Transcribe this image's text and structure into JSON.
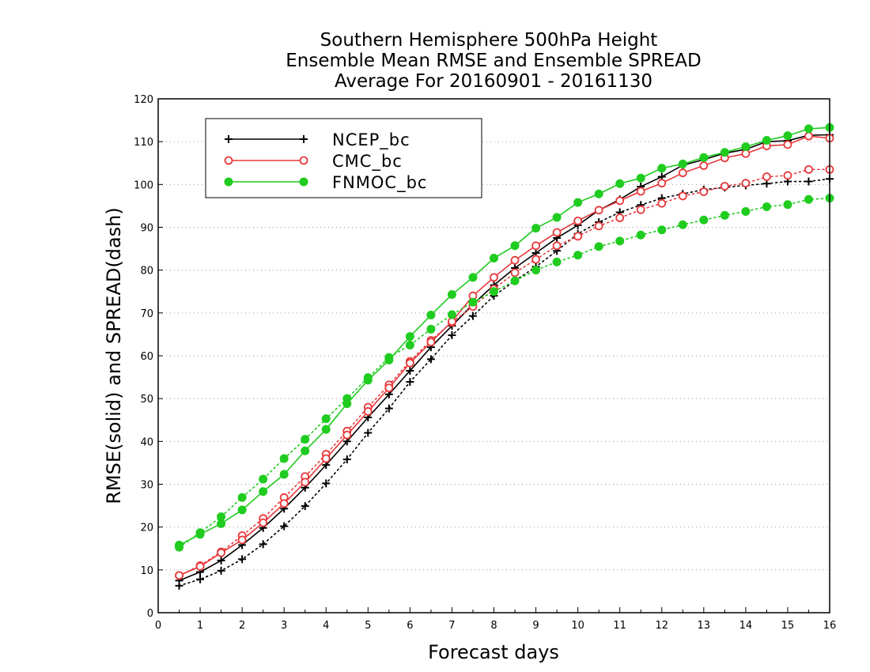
{
  "chart_data": {
    "type": "line",
    "title": [
      "Southern Hemisphere 500hPa Height",
      "Ensemble Mean RMSE and Ensemble SPREAD",
      "Average For 20160901 - 20161130"
    ],
    "xlabel": "Forecast days",
    "ylabel": "RMSE(solid) and SPREAD(dash)",
    "xlim": [
      0,
      16
    ],
    "ylim": [
      0,
      120
    ],
    "xticks": [
      0,
      1,
      2,
      3,
      4,
      5,
      6,
      7,
      8,
      9,
      10,
      11,
      12,
      13,
      14,
      15,
      16
    ],
    "yticks": [
      0,
      10,
      20,
      30,
      40,
      50,
      60,
      70,
      80,
      90,
      100,
      110,
      120
    ],
    "grid": true,
    "legend_position": "top-left",
    "x": [
      0.5,
      1,
      1.5,
      2,
      2.5,
      3,
      3.5,
      4,
      4.5,
      5,
      5.5,
      6,
      6.5,
      7,
      7.5,
      8,
      8.5,
      9,
      9.5,
      10,
      10.5,
      11,
      11.5,
      12,
      12.5,
      13,
      13.5,
      14,
      14.5,
      15,
      15.5,
      16
    ],
    "series": [
      {
        "name": "NCEP_bc",
        "color": "#000000",
        "marker": "plus",
        "rmse": [
          7.5,
          9.5,
          12.2,
          15.8,
          19.8,
          24.3,
          29.2,
          34.5,
          40.0,
          45.6,
          51.0,
          56.5,
          62.0,
          67.0,
          72.0,
          76.5,
          80.5,
          84.0,
          87.5,
          90.5,
          94.0,
          96.5,
          99.5,
          101.8,
          104.5,
          105.8,
          107.3,
          108.2,
          110.0,
          110.2,
          111.5,
          111.6
        ],
        "spread": [
          6.3,
          7.8,
          9.8,
          12.5,
          16.0,
          20.2,
          24.9,
          30.2,
          35.8,
          42.0,
          47.7,
          53.9,
          59.2,
          64.8,
          69.3,
          74.0,
          77.5,
          80.8,
          84.5,
          88.5,
          91.2,
          93.5,
          95.2,
          96.8,
          97.8,
          98.8,
          99.3,
          99.8,
          100.2,
          100.7,
          100.7,
          101.3
        ]
      },
      {
        "name": "CMC_bc",
        "color": "#e8393c",
        "marker": "open-circle",
        "rmse": [
          8.7,
          10.8,
          14.0,
          17.0,
          21.0,
          25.5,
          30.5,
          36.0,
          41.5,
          47.0,
          52.5,
          58.3,
          63.2,
          68.0,
          74.0,
          78.3,
          82.3,
          85.7,
          88.8,
          91.5,
          94.0,
          96.2,
          98.4,
          100.3,
          102.7,
          104.4,
          106.2,
          107.2,
          109.0,
          109.3,
          111.3,
          110.8
        ],
        "spread": [
          8.7,
          11.0,
          14.2,
          18.0,
          22.0,
          26.9,
          31.8,
          37.0,
          42.4,
          48.0,
          53.2,
          58.7,
          63.6,
          67.8,
          71.5,
          75.6,
          79.4,
          82.5,
          85.7,
          87.9,
          90.3,
          92.2,
          94.1,
          95.6,
          97.3,
          98.3,
          99.6,
          100.3,
          101.8,
          102.1,
          103.5,
          103.5
        ]
      },
      {
        "name": "FNMOC_bc",
        "color": "#1fcc1f",
        "marker": "filled-circle",
        "rmse": [
          15.8,
          18.3,
          20.8,
          24.0,
          28.3,
          32.3,
          37.8,
          42.8,
          48.8,
          54.3,
          59.0,
          64.5,
          69.5,
          74.3,
          78.3,
          82.8,
          85.7,
          89.8,
          92.3,
          95.8,
          97.8,
          100.2,
          101.5,
          103.8,
          104.8,
          106.3,
          107.5,
          108.8,
          110.3,
          111.4,
          113.0,
          113.3
        ],
        "spread": [
          15.3,
          18.7,
          22.4,
          26.9,
          31.2,
          36.0,
          40.5,
          45.3,
          50.0,
          54.9,
          59.6,
          62.5,
          66.2,
          69.6,
          72.5,
          75.0,
          77.5,
          80.0,
          81.9,
          83.5,
          85.5,
          86.8,
          88.2,
          89.4,
          90.6,
          91.7,
          92.8,
          93.7,
          94.8,
          95.3,
          96.5,
          96.8
        ]
      }
    ]
  }
}
